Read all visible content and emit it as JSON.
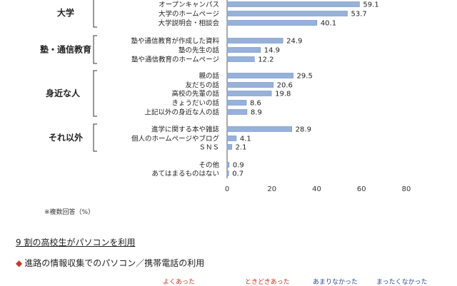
{
  "chart_data": {
    "type": "bar",
    "orientation": "horizontal",
    "groups": [
      {
        "name": "大学",
        "start": 0,
        "end": 2
      },
      {
        "name": "塾・通信教育",
        "start": 3,
        "end": 5
      },
      {
        "name": "身近な人",
        "start": 6,
        "end": 10
      },
      {
        "name": "それ以外",
        "start": 11,
        "end": 13
      }
    ],
    "categories": [
      "オープンキャンパス",
      "大学のホームページ",
      "大学説明会・相談会",
      "塾や通信教育が作成した資料",
      "塾の先生の話",
      "塾や通信教育のホームページ",
      "親の話",
      "友だちの話",
      "高校の先輩の話",
      "きょうだいの話",
      "上記以外の身近な人の話",
      "進学に関する本や雑誌",
      "個人のホームページやブログ",
      "ＳＮＳ",
      "その他",
      "あてはまるものはない"
    ],
    "values": [
      59.1,
      53.7,
      40.1,
      24.9,
      14.9,
      12.2,
      29.5,
      20.6,
      19.8,
      8.6,
      8.9,
      28.9,
      4.1,
      2.1,
      0.9,
      0.7
    ],
    "xlim": [
      0,
      80
    ],
    "xticks": [
      "0",
      "20",
      "40",
      "60",
      "80"
    ],
    "bar_color": "#97b1d9",
    "bar_edge": "#6d8fc4"
  },
  "note": "※複数回答（%）",
  "section_heading": "9 割の高校生がパソコンを利用",
  "sub_heading_marker": "◆",
  "sub_heading": "進路の情報収集でのパソコン／携帯電話の利用",
  "legend": [
    {
      "label": "よくあった",
      "color": "#c0392b"
    },
    {
      "label": "ときどきあった",
      "color": "#c0392b"
    },
    {
      "label": "あまりなかった",
      "color": "#2c4a8c"
    },
    {
      "label": "まったくなかった",
      "color": "#2c4a8c"
    }
  ]
}
